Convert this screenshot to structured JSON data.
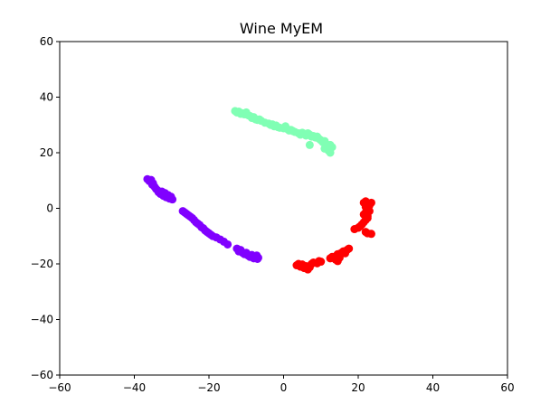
{
  "chart_data": {
    "type": "scatter",
    "title": "Wine MyEM",
    "xlabel": "",
    "ylabel": "",
    "xlim": [
      -60,
      60
    ],
    "ylim": [
      -60,
      60
    ],
    "xticks": [
      -60,
      -40,
      -20,
      0,
      20,
      40,
      60
    ],
    "yticks": [
      -60,
      -40,
      -20,
      0,
      20,
      40,
      60
    ],
    "grid": false,
    "series": [
      {
        "color": "#8000ff",
        "points": [
          [
            -36.5,
            10.5
          ],
          [
            -36,
            9.8
          ],
          [
            -35.5,
            10.2
          ],
          [
            -35,
            9
          ],
          [
            -35.2,
            8.5
          ],
          [
            -34.6,
            7.8
          ],
          [
            -34.2,
            7
          ],
          [
            -33.8,
            6.5
          ],
          [
            -33.5,
            5.8
          ],
          [
            -33,
            5.2
          ],
          [
            -32.6,
            6
          ],
          [
            -32.2,
            4.5
          ],
          [
            -31.8,
            5.5
          ],
          [
            -31.5,
            4
          ],
          [
            -31,
            4.8
          ],
          [
            -30.6,
            3.5
          ],
          [
            -30.2,
            4.2
          ],
          [
            -29.8,
            3.2
          ],
          [
            -27,
            -1
          ],
          [
            -26.5,
            -1.5
          ],
          [
            -26,
            -2
          ],
          [
            -25.5,
            -2.5
          ],
          [
            -25,
            -3
          ],
          [
            -24.5,
            -3.5
          ],
          [
            -24,
            -4.2
          ],
          [
            -23.5,
            -5
          ],
          [
            -23,
            -5.5
          ],
          [
            -22.5,
            -6
          ],
          [
            -22,
            -6.8
          ],
          [
            -21.5,
            -7.2
          ],
          [
            -21,
            -8
          ],
          [
            -20.5,
            -8.5
          ],
          [
            -20,
            -9
          ],
          [
            -19.5,
            -9.5
          ],
          [
            -19,
            -10
          ],
          [
            -18,
            -10.5
          ],
          [
            -17,
            -11.2
          ],
          [
            -16,
            -12
          ],
          [
            -15,
            -13
          ],
          [
            -12.5,
            -14.5
          ],
          [
            -12,
            -15.5
          ],
          [
            -11.5,
            -15
          ],
          [
            -11,
            -16
          ],
          [
            -10.5,
            -16.5
          ],
          [
            -10,
            -16
          ],
          [
            -9.5,
            -17
          ],
          [
            -9,
            -17.5
          ],
          [
            -8.5,
            -16.8
          ],
          [
            -8,
            -18
          ],
          [
            -7.5,
            -17.5
          ],
          [
            -7,
            -18.2
          ],
          [
            -7.2,
            -17
          ],
          [
            -6.8,
            -17.8
          ]
        ]
      },
      {
        "color": "#80ffb4",
        "points": [
          [
            -13,
            35
          ],
          [
            -12.5,
            34.5
          ],
          [
            -12,
            34.8
          ],
          [
            -11.5,
            34
          ],
          [
            -11,
            34.2
          ],
          [
            -10.5,
            33.8
          ],
          [
            -10,
            34.5
          ],
          [
            -9.5,
            33.5
          ],
          [
            -9,
            33.2
          ],
          [
            -8.5,
            32.5
          ],
          [
            -8,
            32.8
          ],
          [
            -7.5,
            32
          ],
          [
            -7,
            31.8
          ],
          [
            -6.5,
            32
          ],
          [
            -6,
            31.5
          ],
          [
            -5,
            30.8
          ],
          [
            -4,
            30.5
          ],
          [
            -3.5,
            30
          ],
          [
            -3,
            30.2
          ],
          [
            -2.5,
            29.5
          ],
          [
            -2,
            29.8
          ],
          [
            -1.5,
            29.2
          ],
          [
            -1,
            29
          ],
          [
            0,
            28.8
          ],
          [
            0.5,
            29.5
          ],
          [
            1,
            28.5
          ],
          [
            1.5,
            28
          ],
          [
            2,
            28.2
          ],
          [
            2.5,
            27.8
          ],
          [
            3,
            27.5
          ],
          [
            4,
            27
          ],
          [
            4.5,
            26.5
          ],
          [
            5,
            27.2
          ],
          [
            5.5,
            26.8
          ],
          [
            6,
            26.2
          ],
          [
            6.5,
            27
          ],
          [
            7,
            26.5
          ],
          [
            7.5,
            25.8
          ],
          [
            8,
            26
          ],
          [
            8.5,
            25.5
          ],
          [
            9,
            25.8
          ],
          [
            9.5,
            25
          ],
          [
            10,
            24.5
          ],
          [
            10.5,
            23.8
          ],
          [
            11,
            24.2
          ],
          [
            11.5,
            23
          ],
          [
            12,
            22.5
          ],
          [
            12.5,
            22.8
          ],
          [
            13,
            22
          ],
          [
            11,
            21.5
          ],
          [
            12,
            20.8
          ],
          [
            12.5,
            20
          ],
          [
            7,
            22.8
          ]
        ]
      },
      {
        "color": "#ff0000",
        "points": [
          [
            3.5,
            -20.5
          ],
          [
            4,
            -20
          ],
          [
            4.5,
            -21
          ],
          [
            5,
            -20.2
          ],
          [
            5.5,
            -21.5
          ],
          [
            6,
            -20.8
          ],
          [
            6.5,
            -22
          ],
          [
            7,
            -21.2
          ],
          [
            7.5,
            -20
          ],
          [
            8,
            -19.5
          ],
          [
            9,
            -19.8
          ],
          [
            9.5,
            -19
          ],
          [
            10,
            -19.2
          ],
          [
            13,
            -17.5
          ],
          [
            13.5,
            -18
          ],
          [
            14,
            -17.2
          ],
          [
            14.5,
            -16.5
          ],
          [
            15,
            -17.8
          ],
          [
            15.5,
            -16
          ],
          [
            16,
            -15.5
          ],
          [
            16.5,
            -16.2
          ],
          [
            17,
            -15
          ],
          [
            17.5,
            -14.5
          ],
          [
            19,
            -7.5
          ],
          [
            20,
            -7
          ],
          [
            20.5,
            -6.5
          ],
          [
            21,
            -5.8
          ],
          [
            21.5,
            -5
          ],
          [
            22,
            -4.2
          ],
          [
            22.5,
            -3.5
          ],
          [
            22,
            -8.5
          ],
          [
            22.5,
            -9
          ],
          [
            23.5,
            -9.2
          ],
          [
            21.5,
            2
          ],
          [
            22,
            2.5
          ],
          [
            22.5,
            1.5
          ],
          [
            23,
            1
          ],
          [
            23.5,
            2
          ],
          [
            22,
            0.5
          ],
          [
            22.5,
            -0.5
          ],
          [
            23,
            -1
          ],
          [
            22,
            -1.5
          ],
          [
            21.5,
            -2.2
          ],
          [
            22.5,
            -2.8
          ],
          [
            14,
            -18.5
          ],
          [
            12.5,
            -18
          ],
          [
            14.5,
            -19
          ]
        ]
      }
    ]
  }
}
